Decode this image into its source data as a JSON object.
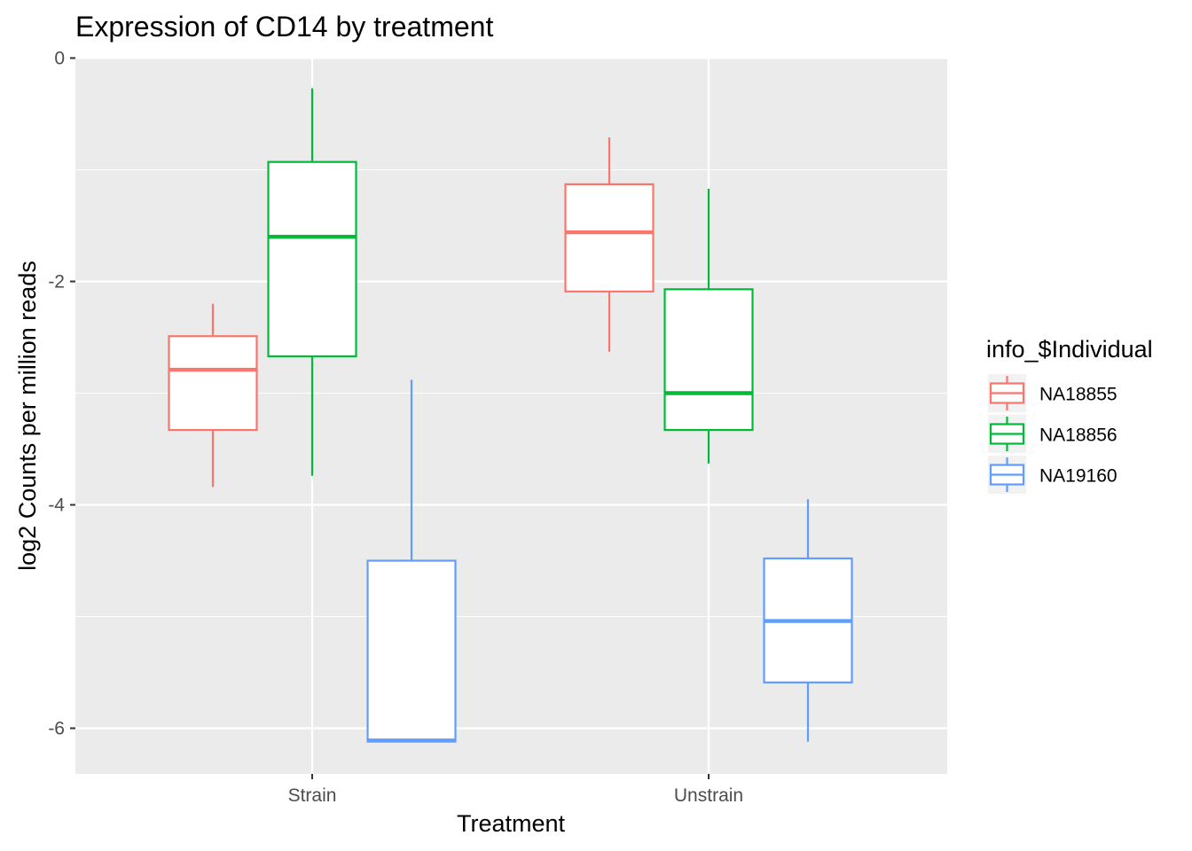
{
  "chart_data": {
    "type": "box",
    "title": "Expression of CD14 by treatment",
    "xlabel": "Treatment",
    "ylabel": "log2 Counts per million reads",
    "ylim": [
      -6.4,
      0
    ],
    "yticks": [
      0,
      -2,
      -4,
      -6
    ],
    "ytick_labels": [
      "0",
      "-2",
      "-4",
      "-6"
    ],
    "categories": [
      "Strain",
      "Unstrain"
    ],
    "legend": {
      "title": "info_$Individual",
      "position": "right"
    },
    "grid": true,
    "series": [
      {
        "name": "NA18855",
        "color": "#F8766D",
        "boxes": [
          {
            "whisker_low": -3.84,
            "q1": -3.33,
            "median": -2.79,
            "q3": -2.49,
            "whisker_high": -2.2
          },
          {
            "whisker_low": -2.63,
            "q1": -2.09,
            "median": -1.56,
            "q3": -1.13,
            "whisker_high": -0.71
          }
        ]
      },
      {
        "name": "NA18856",
        "color": "#00BA38",
        "boxes": [
          {
            "whisker_low": -3.74,
            "q1": -2.67,
            "median": -1.6,
            "q3": -0.93,
            "whisker_high": -0.27
          },
          {
            "whisker_low": -3.63,
            "q1": -3.33,
            "median": -3.0,
            "q3": -2.07,
            "whisker_high": -1.17
          }
        ]
      },
      {
        "name": "NA19160",
        "color": "#619CFF",
        "boxes": [
          {
            "whisker_low": -6.12,
            "q1": -6.12,
            "median": -6.11,
            "q3": -4.5,
            "whisker_high": -2.88
          },
          {
            "whisker_low": -6.12,
            "q1": -5.59,
            "median": -5.04,
            "q3": -4.48,
            "whisker_high": -3.95
          }
        ]
      }
    ]
  }
}
